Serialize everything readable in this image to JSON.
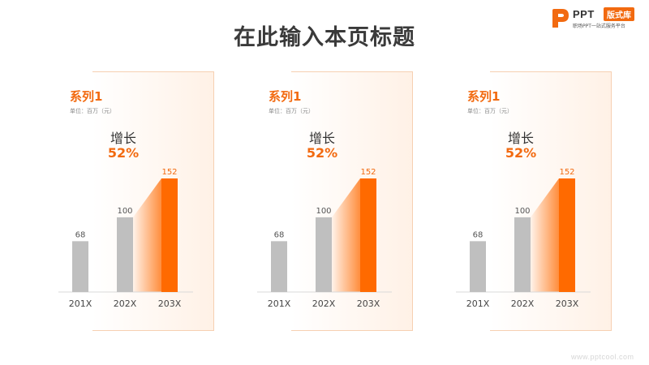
{
  "title": "在此输入本页标题",
  "logo": {
    "word": "PPT",
    "badge": "版式库",
    "tagline": "职场PPT一站式服务平台"
  },
  "watermark": "www.pptcool.com",
  "colors": {
    "accent": "#f26a10",
    "bar_gray": "#bfbfbf",
    "bar_orange": "#ff6a00",
    "axis": "#d9d9d9"
  },
  "panels": [
    {
      "series": "系列1",
      "unit": "单位：百万（元）",
      "growth_label": "增长",
      "growth_value": "52%"
    },
    {
      "series": "系列1",
      "unit": "单位：百万（元）",
      "growth_label": "增长",
      "growth_value": "52%"
    },
    {
      "series": "系列1",
      "unit": "单位：百万（元）",
      "growth_label": "增长",
      "growth_value": "52%"
    }
  ],
  "chart_data": [
    {
      "type": "bar",
      "categories": [
        "201X",
        "202X",
        "203X"
      ],
      "values": [
        68,
        100,
        152
      ],
      "highlight_index": 2,
      "ylim": [
        0,
        152
      ]
    },
    {
      "type": "bar",
      "categories": [
        "201X",
        "202X",
        "203X"
      ],
      "values": [
        68,
        100,
        152
      ],
      "highlight_index": 2,
      "ylim": [
        0,
        152
      ]
    },
    {
      "type": "bar",
      "categories": [
        "201X",
        "202X",
        "203X"
      ],
      "values": [
        68,
        100,
        152
      ],
      "highlight_index": 2,
      "ylim": [
        0,
        152
      ]
    }
  ]
}
